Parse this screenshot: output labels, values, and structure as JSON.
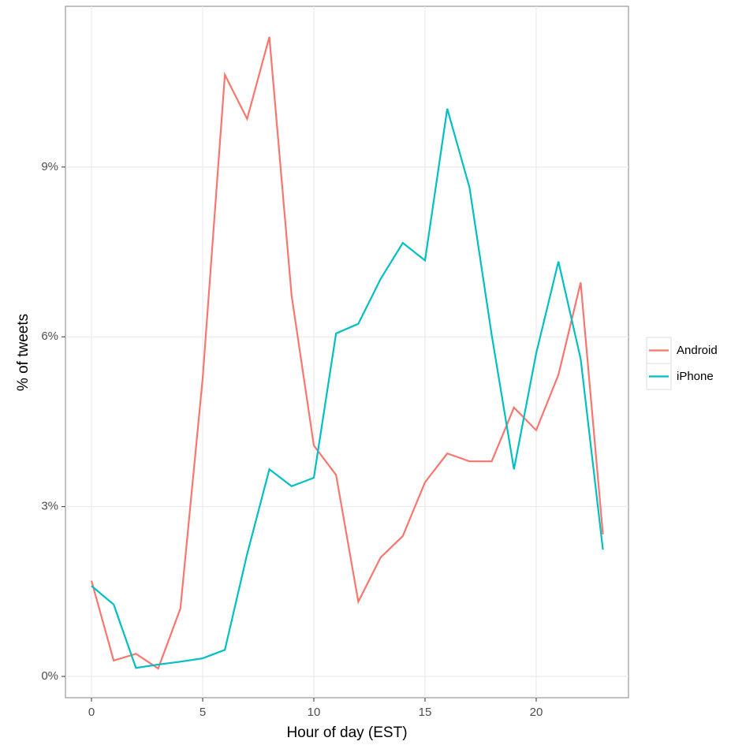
{
  "chart_data": {
    "type": "line",
    "x_label": "Hour of day (EST)",
    "y_label": "% of tweets",
    "x": [
      0,
      1,
      2,
      3,
      4,
      5,
      6,
      7,
      8,
      9,
      10,
      11,
      12,
      13,
      14,
      15,
      16,
      17,
      18,
      19,
      20,
      21,
      22,
      23
    ],
    "series": [
      {
        "name": "Android",
        "color": "#F8766D",
        "values": [
          1.69,
          0.28,
          0.4,
          0.14,
          1.2,
          5.26,
          10.63,
          9.85,
          11.3,
          6.73,
          4.08,
          3.56,
          1.32,
          2.1,
          2.48,
          3.43,
          3.94,
          3.8,
          3.8,
          4.75,
          4.35,
          5.33,
          6.96,
          2.51
        ]
      },
      {
        "name": "iPhone",
        "color": "#00BFC4",
        "values": [
          1.6,
          1.27,
          0.15,
          0.21,
          0.26,
          0.32,
          0.47,
          2.16,
          3.66,
          3.36,
          3.51,
          6.06,
          6.23,
          7.02,
          7.66,
          7.35,
          10.03,
          8.64,
          6.03,
          3.66,
          5.71,
          7.33,
          5.61,
          2.24
        ]
      }
    ],
    "xlim": [
      -1.17,
      24.15
    ],
    "xticks": [
      0,
      5,
      10,
      15,
      20
    ],
    "ylim": [
      -0.376,
      11.84
    ],
    "yticks": [
      {
        "value": 0,
        "label": "0%"
      },
      {
        "value": 3,
        "label": "3%"
      },
      {
        "value": 6,
        "label": "6%"
      },
      {
        "value": 9,
        "label": "9%"
      }
    ],
    "grid": true,
    "legend": "right"
  }
}
